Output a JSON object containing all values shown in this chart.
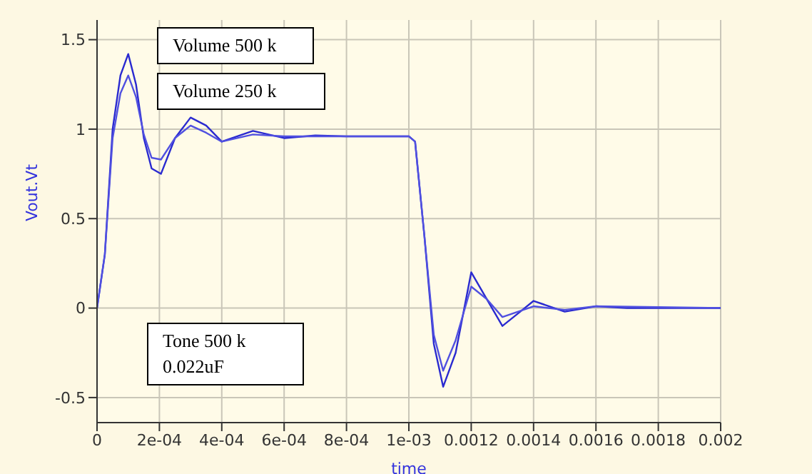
{
  "chart_data": {
    "type": "line",
    "xlabel": "time",
    "ylabel": "Vout.Vt",
    "xlim": [
      0,
      0.002
    ],
    "ylim": [
      -0.64,
      1.61
    ],
    "xticks": [
      0,
      {
        "value": 0.0002,
        "label": "2e-04"
      },
      {
        "value": 0.0004,
        "label": "4e-04"
      },
      {
        "value": 0.0006,
        "label": "6e-04"
      },
      {
        "value": 0.0008,
        "label": "8e-04"
      },
      {
        "value": 0.001,
        "label": "1e-03"
      },
      0.0012,
      0.0014,
      0.0016,
      0.0018,
      0.002
    ],
    "yticks": [
      -0.5,
      0,
      0.5,
      1,
      1.5
    ],
    "grid": true,
    "legend": false,
    "marker": "none",
    "line_style": "solid",
    "annotations": [
      "Volume 500 k",
      "Volume 250 k",
      "Tone 500 k\n0.022uF"
    ],
    "series": [
      {
        "color": "#2a2ad0",
        "x": [
          0,
          2.5e-05,
          5e-05,
          7.5e-05,
          0.0001,
          0.000125,
          0.00015,
          0.000175,
          0.000205,
          0.00025,
          0.0003,
          0.00035,
          0.0004,
          0.00045,
          0.0005,
          0.00055,
          0.0006,
          0.0007,
          0.0008,
          0.0009,
          0.001,
          0.00102,
          0.00105,
          0.00108,
          0.00111,
          0.00115,
          0.0012,
          0.00125,
          0.0013,
          0.00135,
          0.0014,
          0.00145,
          0.0015,
          0.0016,
          0.0017,
          0.002
        ],
        "values": [
          0,
          0.3,
          1.0,
          1.3,
          1.42,
          1.25,
          0.95,
          0.78,
          0.75,
          0.95,
          1.065,
          1.02,
          0.93,
          0.96,
          0.99,
          0.97,
          0.95,
          0.965,
          0.96,
          0.96,
          0.96,
          0.93,
          0.4,
          -0.2,
          -0.44,
          -0.25,
          0.2,
          0.05,
          -0.1,
          -0.03,
          0.04,
          0.01,
          -0.02,
          0.01,
          0,
          0
        ]
      },
      {
        "color": "#5050e0",
        "x": [
          0,
          2.5e-05,
          5e-05,
          7.5e-05,
          0.0001,
          0.000125,
          0.00015,
          0.000175,
          0.000205,
          0.00025,
          0.0003,
          0.00035,
          0.0004,
          0.0005,
          0.0006,
          0.0008,
          0.001,
          0.00102,
          0.00105,
          0.00108,
          0.00111,
          0.00115,
          0.0012,
          0.00125,
          0.0013,
          0.0014,
          0.0015,
          0.0016,
          0.002
        ],
        "values": [
          0,
          0.3,
          0.95,
          1.2,
          1.3,
          1.18,
          0.97,
          0.84,
          0.83,
          0.95,
          1.02,
          0.98,
          0.93,
          0.97,
          0.96,
          0.96,
          0.96,
          0.93,
          0.4,
          -0.15,
          -0.35,
          -0.18,
          0.12,
          0.05,
          -0.05,
          0.01,
          -0.01,
          0.01,
          0
        ]
      }
    ]
  }
}
